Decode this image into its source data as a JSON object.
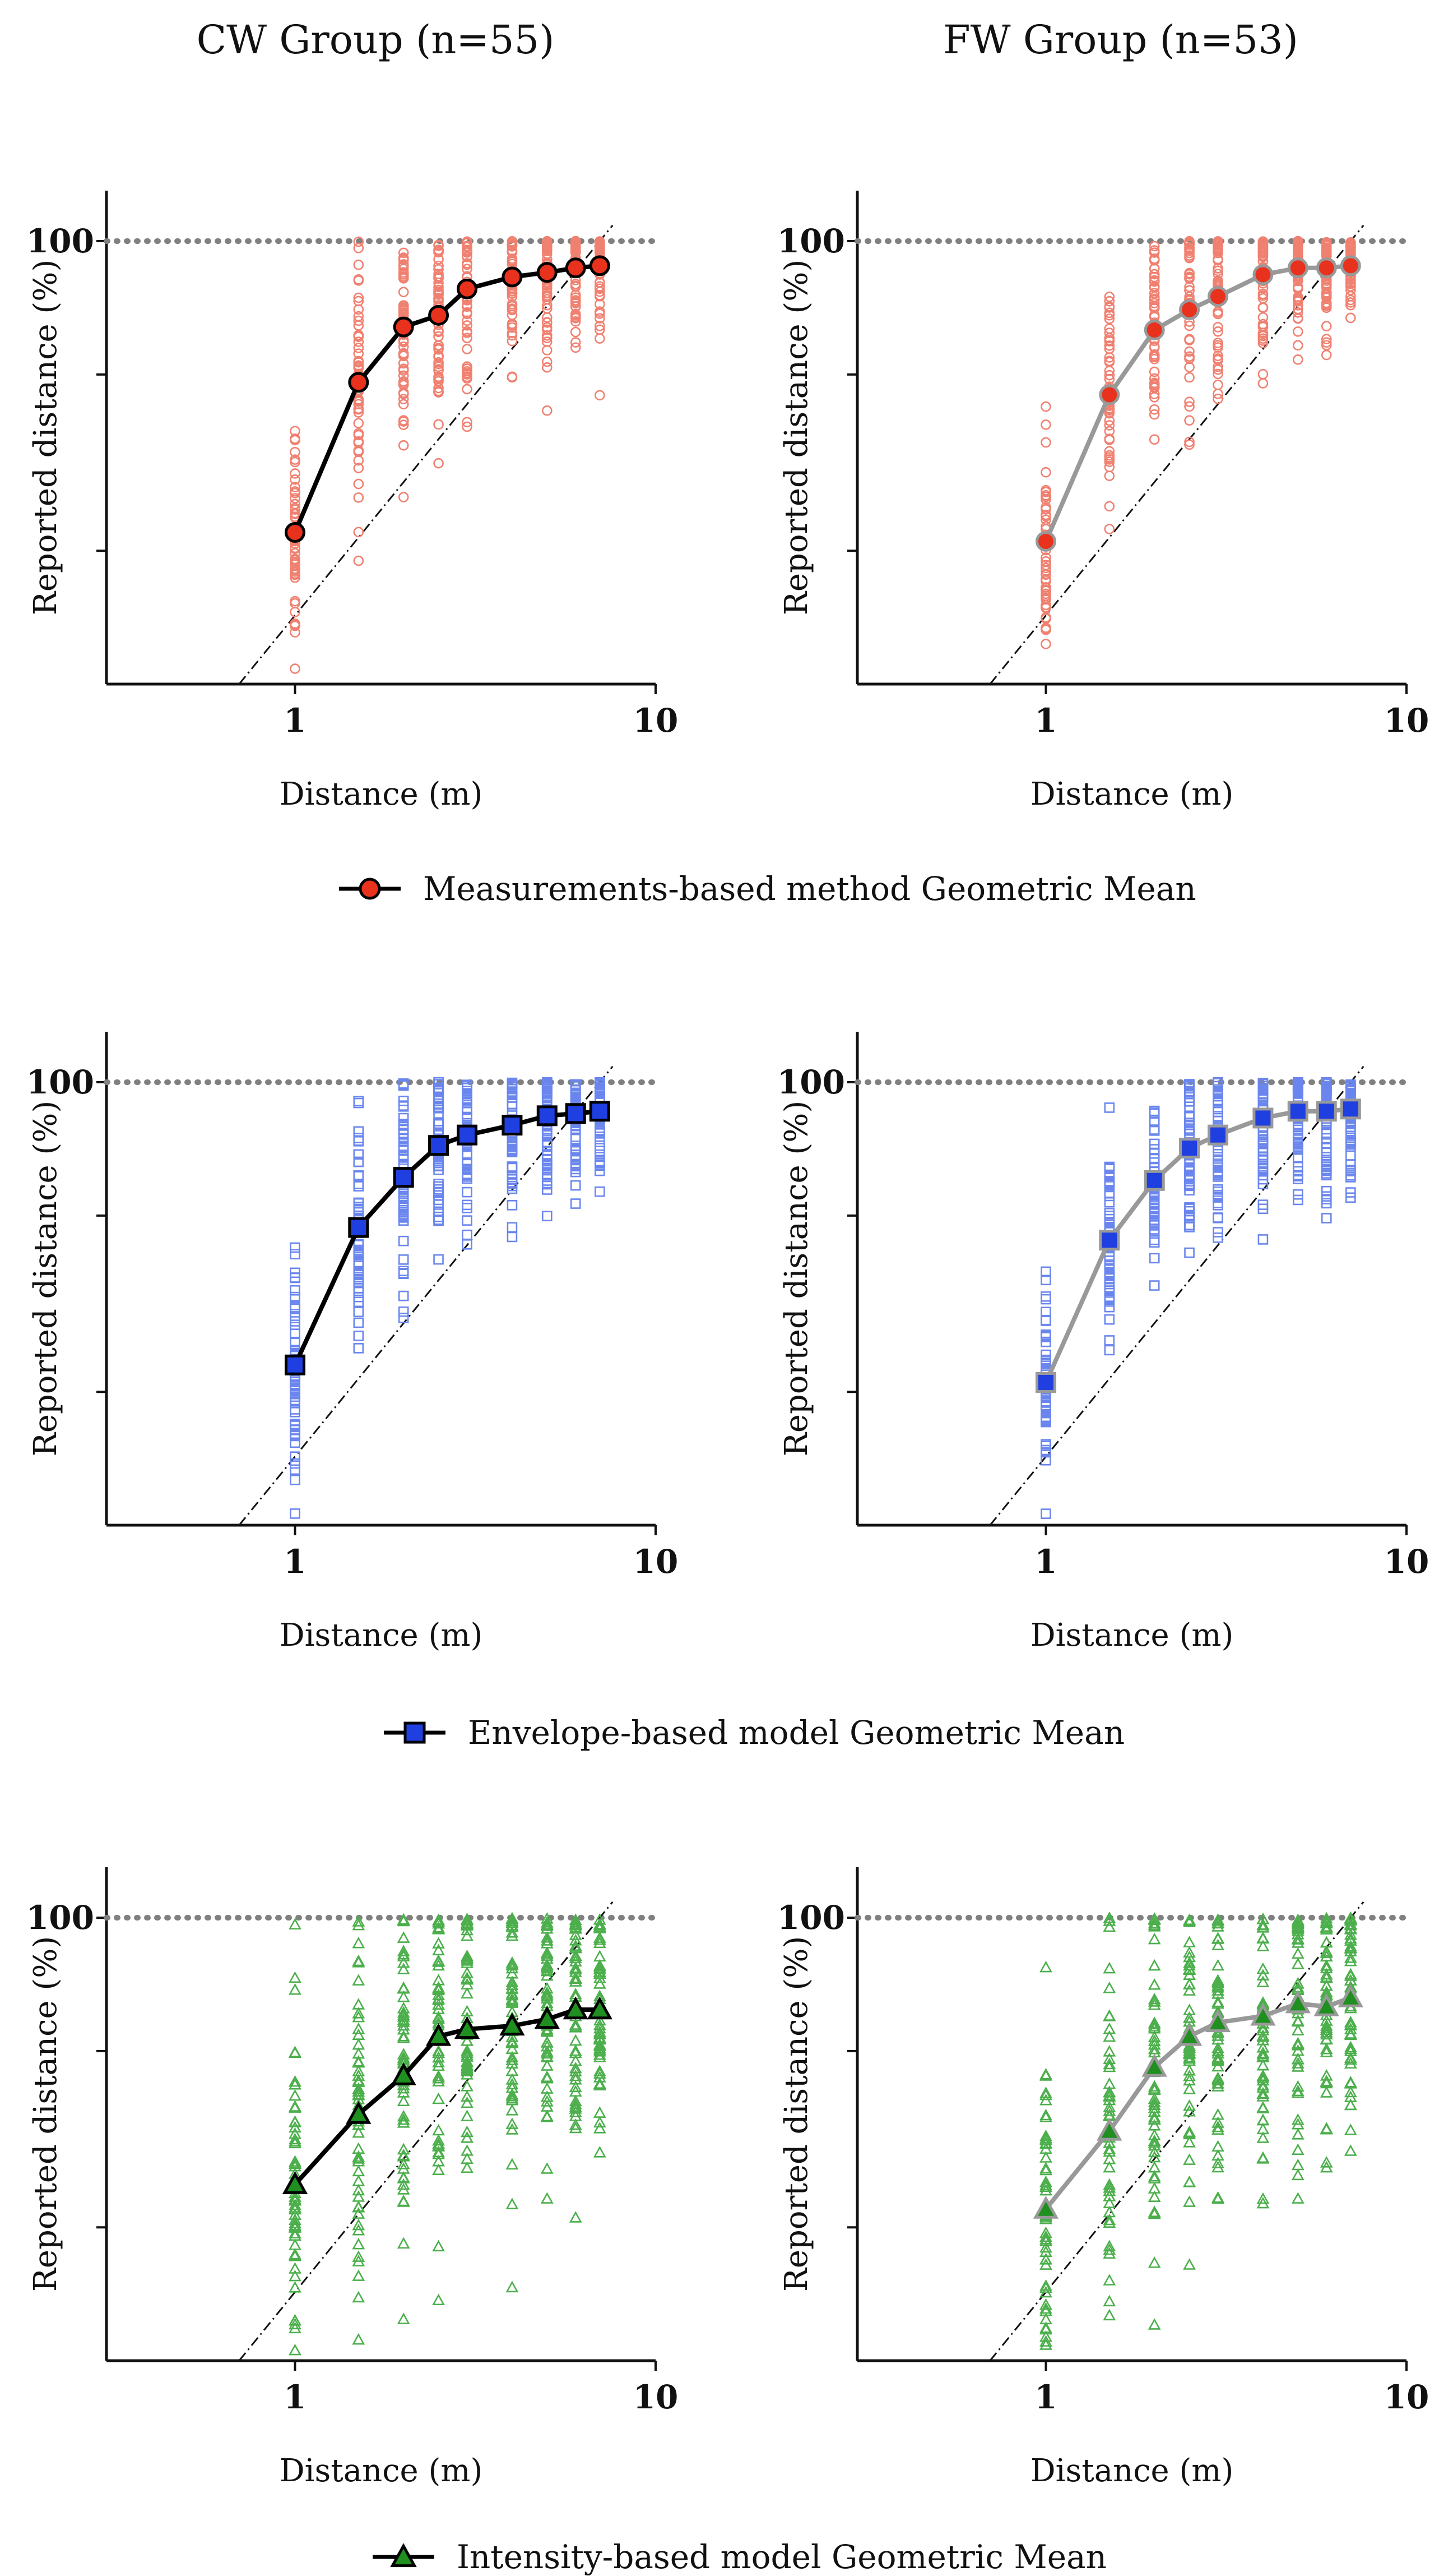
{
  "figure": {
    "group_titles": [
      "CW Group (n=55)",
      "FW Group (n=53)"
    ]
  },
  "colors": {
    "measurements": "#e8321e",
    "measurements_scatter": "#f08070",
    "envelope": "#1f3fe0",
    "envelope_scatter": "#6a86ee",
    "intensity": "#1f8f1f",
    "intensity_scatter": "#4caf4c",
    "cw_line": "#000000",
    "fw_line": "#999999",
    "reference_dotted": "#808080"
  },
  "rows": [
    {
      "legend": "Measurements-based method Geometric Mean",
      "marker": "circle"
    },
    {
      "legend": "Envelope-based model Geometric Mean",
      "marker": "square"
    },
    {
      "legend": "Intensity-based model Geometric Mean",
      "marker": "triangle"
    }
  ],
  "chart_data": [
    {
      "type": "scatter",
      "row": 0,
      "group": "CW",
      "xscale": "log",
      "yscale": "log",
      "xlabel": "Distance (m)",
      "ylabel": "Reported distance (%)",
      "xticks": [
        "1",
        "10"
      ],
      "yticks": [
        "100"
      ],
      "ref_line_y": 100,
      "x": [
        1,
        1.5,
        2,
        2.5,
        3,
        4,
        5,
        6,
        7
      ],
      "mean": [
        22,
        48,
        64,
        68,
        78,
        83,
        85,
        87,
        88
      ]
    },
    {
      "type": "scatter",
      "row": 0,
      "group": "FW",
      "xscale": "log",
      "yscale": "log",
      "xlabel": "Distance (m)",
      "ylabel": "Reported distance (%)",
      "xticks": [
        "1",
        "10"
      ],
      "yticks": [
        "100"
      ],
      "ref_line_y": 100,
      "x": [
        1,
        1.5,
        2,
        2.5,
        3,
        4,
        5,
        6,
        7
      ],
      "mean": [
        21,
        45,
        63,
        70,
        75,
        84,
        87,
        87,
        88
      ]
    },
    {
      "type": "scatter",
      "row": 1,
      "group": "CW",
      "xscale": "log",
      "yscale": "log",
      "xlabel": "Distance (m)",
      "ylabel": "Reported distance (%)",
      "xticks": [
        "1",
        "10"
      ],
      "yticks": [
        "100"
      ],
      "ref_line_y": 100,
      "x": [
        1,
        1.5,
        2,
        2.5,
        3,
        4,
        5,
        6,
        7
      ],
      "mean": [
        23,
        47,
        61,
        72,
        76,
        80,
        84,
        85,
        86
      ]
    },
    {
      "type": "scatter",
      "row": 1,
      "group": "FW",
      "xscale": "log",
      "yscale": "log",
      "xlabel": "Distance (m)",
      "ylabel": "Reported distance (%)",
      "xticks": [
        "1",
        "10"
      ],
      "yticks": [
        "100"
      ],
      "ref_line_y": 100,
      "x": [
        1,
        1.5,
        2,
        2.5,
        3,
        4,
        5,
        6,
        7
      ],
      "mean": [
        21,
        44,
        60,
        71,
        76,
        83,
        86,
        86,
        87
      ]
    },
    {
      "type": "scatter",
      "row": 2,
      "group": "CW",
      "xscale": "log",
      "yscale": "log",
      "xlabel": "Distance (m)",
      "ylabel": "Reported distance (%)",
      "xticks": [
        "1",
        "10"
      ],
      "yticks": [
        "100"
      ],
      "ref_line_y": 100,
      "x": [
        1,
        1.5,
        2,
        2.5,
        3,
        4,
        5,
        6,
        7
      ],
      "mean": [
        25,
        36,
        44,
        54,
        56,
        57,
        59,
        62,
        62
      ]
    },
    {
      "type": "scatter",
      "row": 2,
      "group": "FW",
      "xscale": "log",
      "yscale": "log",
      "xlabel": "Distance (m)",
      "ylabel": "Reported distance (%)",
      "xticks": [
        "1",
        "10"
      ],
      "yticks": [
        "100"
      ],
      "ref_line_y": 100,
      "x": [
        1,
        1.5,
        2,
        2.5,
        3,
        4,
        5,
        6,
        7
      ],
      "mean": [
        22,
        33,
        46,
        54,
        58,
        60,
        64,
        63,
        66
      ]
    }
  ]
}
